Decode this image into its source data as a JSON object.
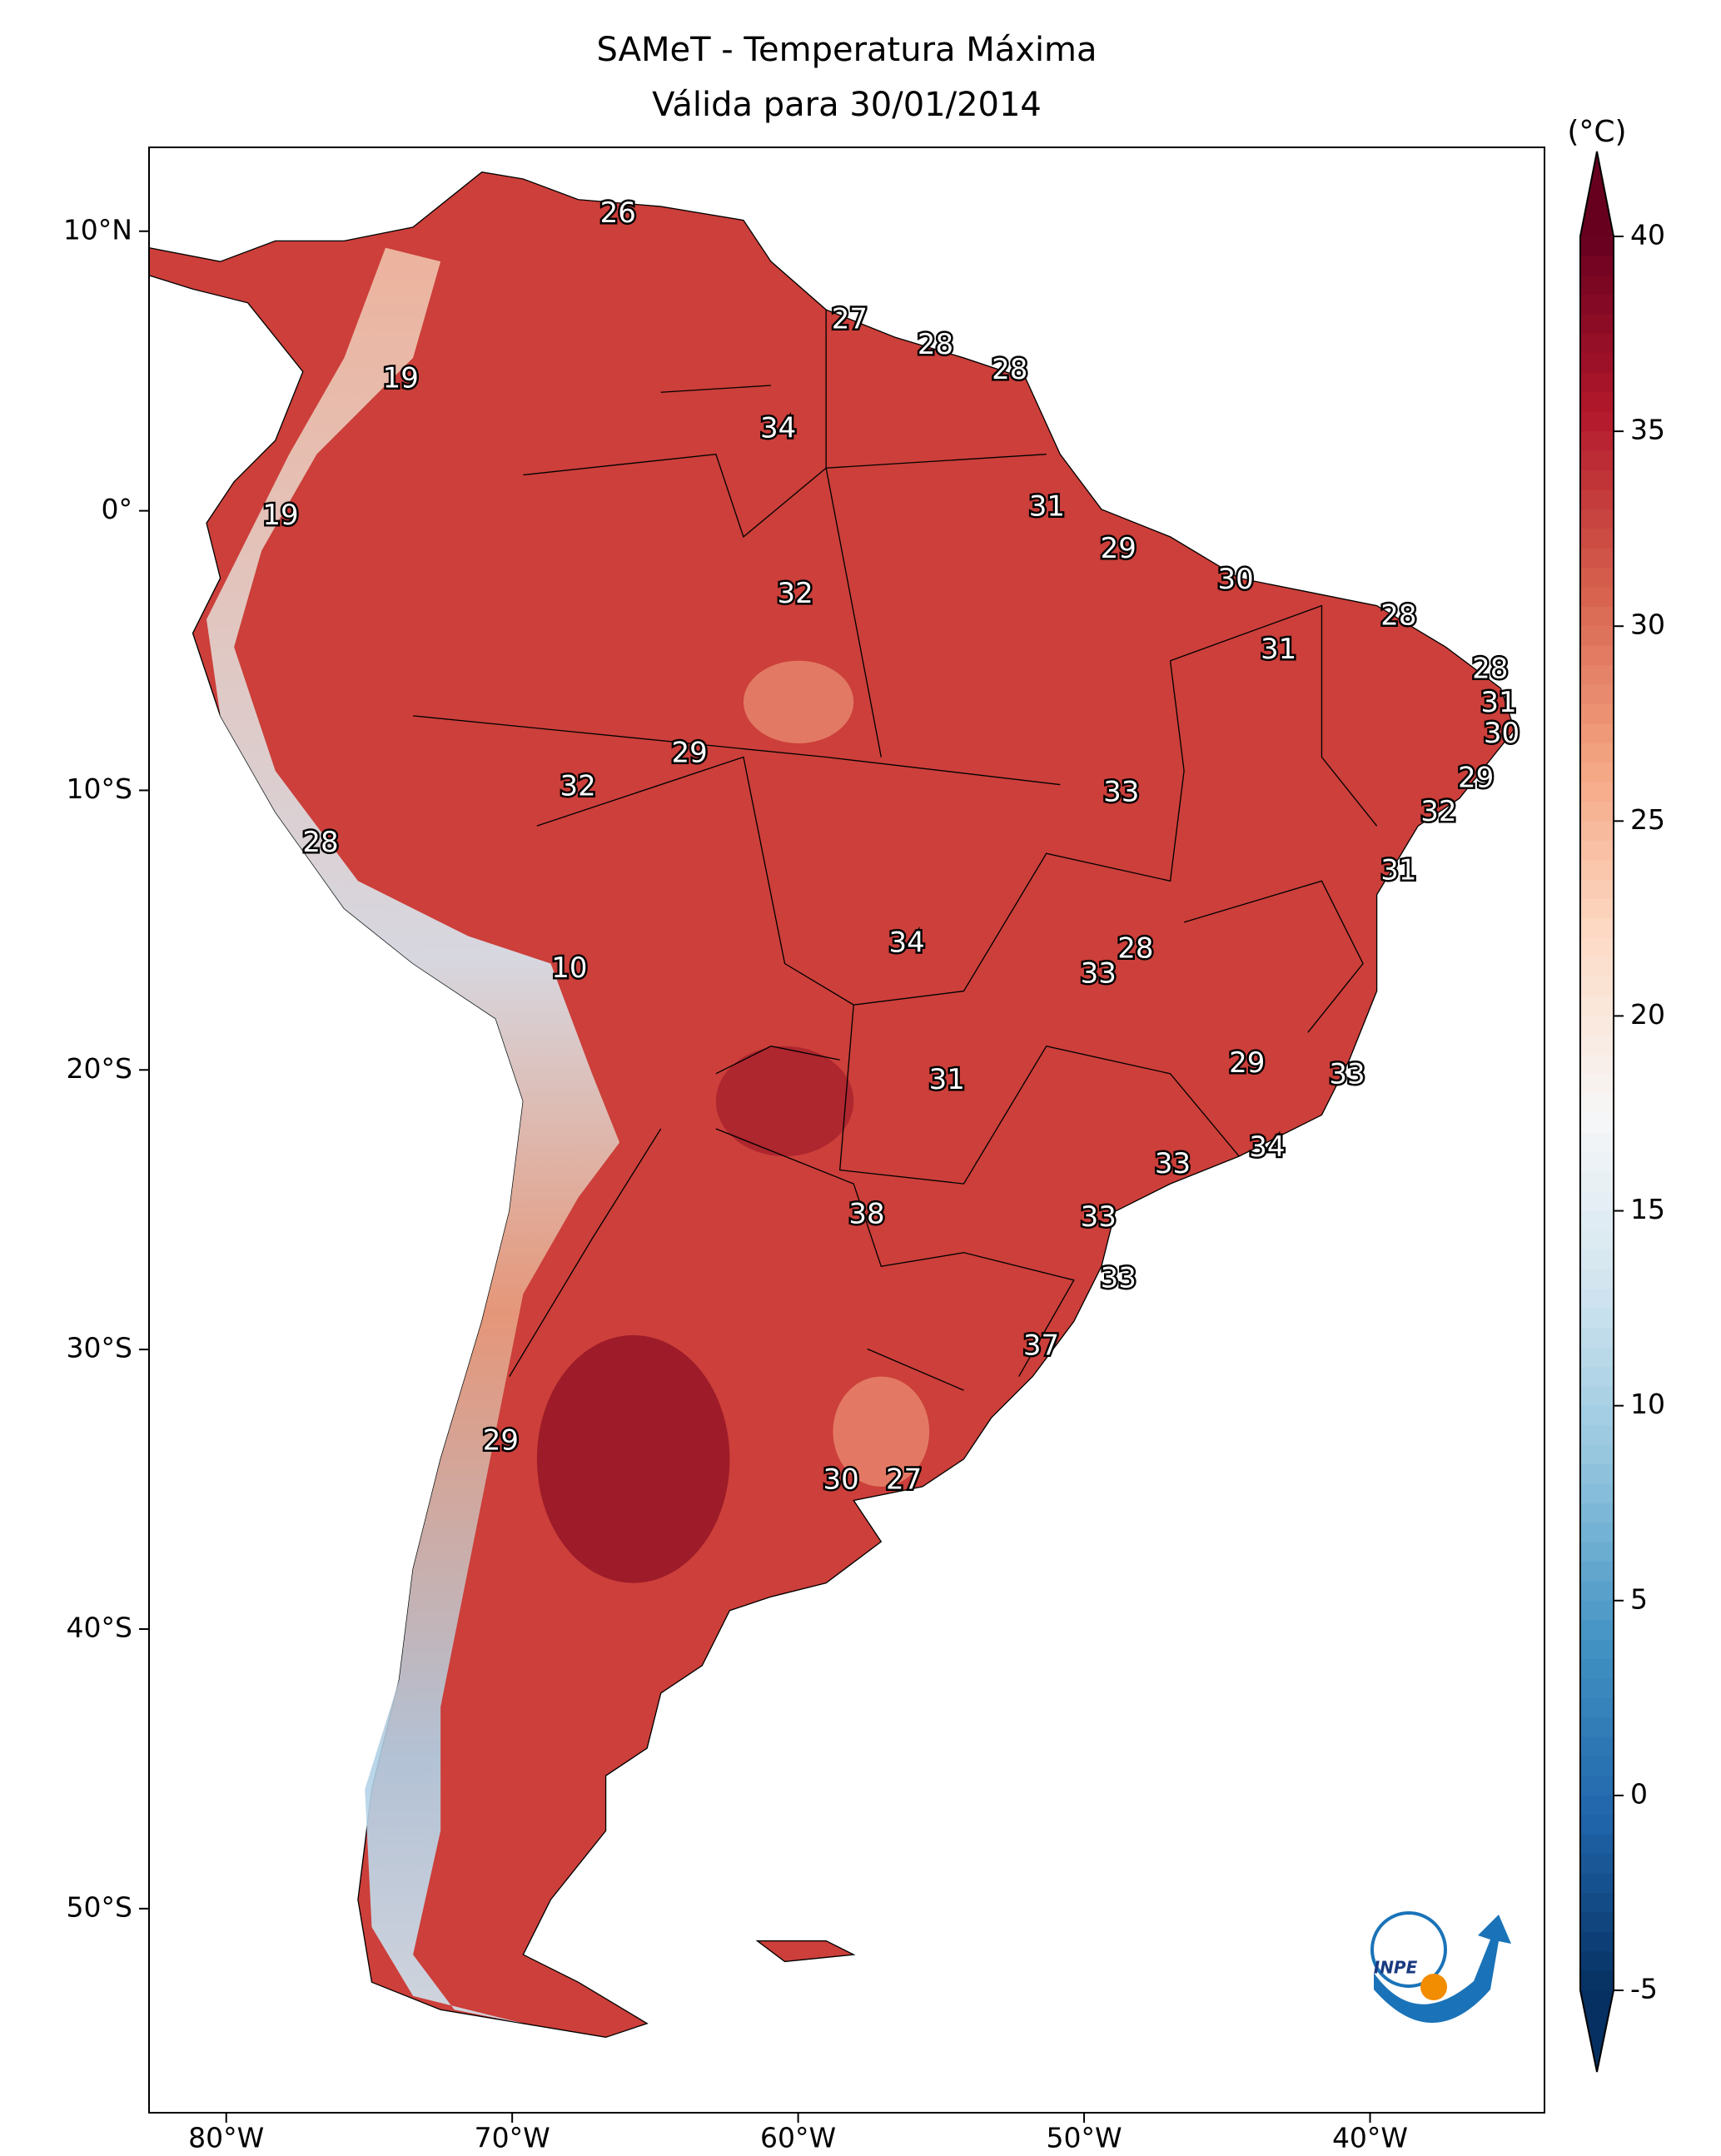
{
  "chart_data": {
    "type": "map",
    "title": "SAMeT - Temperatura Máxima",
    "subtitle": "Válida para 30/01/2014",
    "xlim": [
      -82.7,
      -33.9
    ],
    "ylim": [
      -57.3,
      13
    ],
    "xticks": [
      {
        "value": -80,
        "label": "80°W"
      },
      {
        "value": -70,
        "label": "70°W"
      },
      {
        "value": -60,
        "label": "60°W"
      },
      {
        "value": -50,
        "label": "50°W"
      },
      {
        "value": -40,
        "label": "40°W"
      }
    ],
    "yticks": [
      {
        "value": 10,
        "label": "10°N"
      },
      {
        "value": 0,
        "label": "0°"
      },
      {
        "value": -10,
        "label": "10°S"
      },
      {
        "value": -20,
        "label": "20°S"
      },
      {
        "value": -30,
        "label": "30°S"
      },
      {
        "value": -40,
        "label": "40°S"
      },
      {
        "value": -50,
        "label": "50°S"
      }
    ],
    "labels": {
      "lon": [
        -66.3,
        -58.2,
        -55.2,
        -52.6,
        -73.9,
        -60.7,
        -51.3,
        -78.1,
        -48.8,
        -44.7,
        -60.1,
        -39.0,
        -43.2,
        -35.8,
        -35.5,
        -35.4,
        -63.8,
        -36.3,
        -48.7,
        -67.7,
        -37.6,
        -76.7,
        -39.0,
        -56.2,
        -48.2,
        -68.0,
        -49.5,
        -44.3,
        -54.8,
        -40.8,
        -43.6,
        -46.9,
        -57.6,
        -49.5,
        -48.8,
        -51.5,
        -70.4,
        -58.5,
        -56.3
      ],
      "lat": [
        10.6,
        6.8,
        5.9,
        5.0,
        4.7,
        2.9,
        0.1,
        -0.2,
        -1.4,
        -2.5,
        -3.0,
        -3.8,
        -5.0,
        -5.7,
        -6.9,
        -8.0,
        -8.7,
        -9.6,
        -10.1,
        -9.9,
        -10.8,
        -11.9,
        -12.9,
        -15.5,
        -15.7,
        -16.4,
        -16.6,
        -19.8,
        -20.4,
        -20.2,
        -22.8,
        -23.4,
        -25.2,
        -25.3,
        -27.5,
        -29.9,
        -33.3,
        -34.7,
        -34.7
      ],
      "values": [
        26,
        27,
        28,
        28,
        19,
        34,
        31,
        19,
        29,
        30,
        32,
        28,
        31,
        28,
        31,
        30,
        29,
        29,
        33,
        32,
        32,
        28,
        31,
        34,
        28,
        10,
        33,
        29,
        31,
        33,
        34,
        33,
        38,
        33,
        33,
        37,
        29,
        30,
        27
      ]
    },
    "colorbar": {
      "label": "(°C)",
      "lim": [
        -5,
        40
      ],
      "ticks": [
        -5,
        0,
        5,
        10,
        15,
        20,
        25,
        30,
        35,
        40
      ],
      "colormap": [
        "#053061",
        "#2166ac",
        "#4393c3",
        "#92c5de",
        "#d1e5f0",
        "#f7f7f7",
        "#fddbc7",
        "#f4a582",
        "#d6604d",
        "#b2182b",
        "#67001f"
      ]
    },
    "logo_text": "INPE"
  }
}
